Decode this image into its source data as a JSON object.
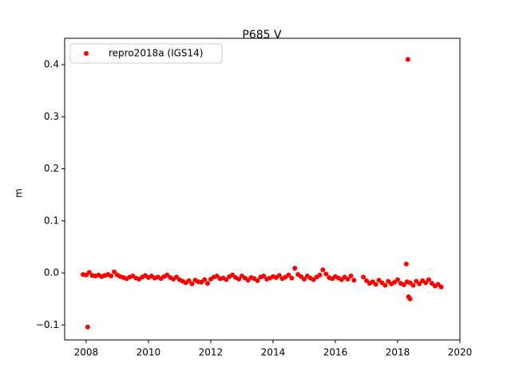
{
  "chart_data": {
    "type": "scatter",
    "title": "P685 V",
    "y_label": "m",
    "xlim": [
      2007.31,
      2020.0
    ],
    "ylim": [
      -0.1287,
      0.4506
    ],
    "xticks": [
      2008,
      2010,
      2012,
      2014,
      2016,
      2018,
      2020
    ],
    "yticks": [
      {
        "value": -0.1,
        "label": "−0.1"
      },
      {
        "value": 0,
        "label": "0.0"
      },
      0.1,
      0.2,
      0.3,
      0.4
    ],
    "legend": "upper left",
    "series": [
      {
        "name": "repro2018a (IGS14)",
        "color": "#ff0000",
        "x": [
          2007.9,
          2008.0,
          2008.1,
          2008.2,
          2008.3,
          2008.4,
          2008.5,
          2008.6,
          2008.7,
          2008.8,
          2008.9,
          2009.0,
          2009.1,
          2009.2,
          2009.3,
          2009.4,
          2009.5,
          2009.6,
          2009.7,
          2009.8,
          2009.9,
          2010.0,
          2010.1,
          2010.2,
          2010.3,
          2010.4,
          2010.5,
          2010.6,
          2010.7,
          2010.8,
          2010.9,
          2011.0,
          2011.1,
          2011.2,
          2011.3,
          2011.4,
          2011.5,
          2011.6,
          2011.7,
          2011.8,
          2011.9,
          2012.0,
          2012.1,
          2012.2,
          2012.3,
          2012.4,
          2012.5,
          2012.6,
          2012.7,
          2012.8,
          2012.9,
          2013.0,
          2013.1,
          2013.2,
          2013.3,
          2013.4,
          2013.5,
          2013.6,
          2013.7,
          2013.8,
          2013.9,
          2014.0,
          2014.1,
          2014.2,
          2014.3,
          2014.4,
          2014.5,
          2014.6,
          2014.7,
          2014.8,
          2014.9,
          2015.0,
          2015.1,
          2015.2,
          2015.3,
          2015.4,
          2015.5,
          2015.6,
          2015.7,
          2015.8,
          2015.9,
          2016.0,
          2016.1,
          2016.2,
          2016.3,
          2016.4,
          2016.5,
          2016.6,
          2016.9,
          2017.0,
          2017.1,
          2017.2,
          2017.3,
          2017.4,
          2017.5,
          2017.6,
          2017.7,
          2017.8,
          2017.9,
          2018.0,
          2018.1,
          2018.2,
          2018.3,
          2018.4,
          2018.5,
          2018.6,
          2018.7,
          2018.8,
          2018.9,
          2019.0,
          2019.1,
          2019.2,
          2019.3,
          2019.4,
          2008.05,
          2018.28,
          2018.33,
          2018.35,
          2018.4
        ],
        "values": [
          -0.003,
          -0.004,
          0.001,
          -0.005,
          -0.006,
          -0.004,
          -0.007,
          -0.005,
          -0.003,
          -0.006,
          0.002,
          -0.004,
          -0.007,
          -0.009,
          -0.011,
          -0.008,
          -0.006,
          -0.01,
          -0.012,
          -0.008,
          -0.005,
          -0.009,
          -0.006,
          -0.01,
          -0.008,
          -0.011,
          -0.007,
          -0.004,
          -0.009,
          -0.012,
          -0.008,
          -0.013,
          -0.016,
          -0.019,
          -0.015,
          -0.021,
          -0.014,
          -0.017,
          -0.018,
          -0.013,
          -0.02,
          -0.012,
          -0.008,
          -0.006,
          -0.011,
          -0.01,
          -0.013,
          -0.007,
          -0.004,
          -0.009,
          -0.012,
          -0.006,
          -0.01,
          -0.014,
          -0.009,
          -0.011,
          -0.015,
          -0.008,
          -0.006,
          -0.012,
          -0.01,
          -0.007,
          -0.009,
          -0.005,
          -0.011,
          -0.008,
          -0.004,
          -0.01,
          0.009,
          -0.003,
          -0.007,
          -0.012,
          -0.006,
          -0.01,
          -0.013,
          -0.008,
          -0.004,
          0.006,
          -0.002,
          -0.009,
          -0.011,
          -0.007,
          -0.01,
          -0.013,
          -0.008,
          -0.012,
          -0.006,
          -0.014,
          -0.008,
          -0.015,
          -0.02,
          -0.017,
          -0.022,
          -0.014,
          -0.019,
          -0.024,
          -0.016,
          -0.021,
          -0.018,
          -0.013,
          -0.02,
          -0.023,
          -0.017,
          -0.019,
          -0.024,
          -0.016,
          -0.021,
          -0.015,
          -0.019,
          -0.013,
          -0.02,
          -0.025,
          -0.022,
          -0.027,
          -0.104,
          0.017,
          0.41,
          -0.046,
          -0.05
        ]
      }
    ]
  }
}
